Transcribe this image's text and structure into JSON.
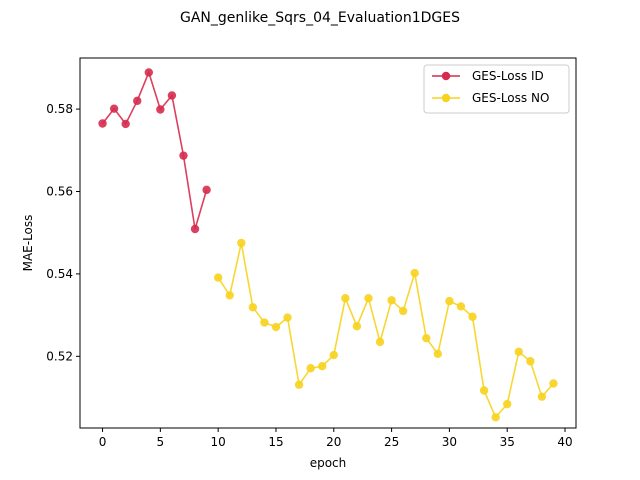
{
  "chart_data": {
    "type": "line",
    "title": "GAN_genlike_Sqrs_04_Evaluation1DGES",
    "xlabel": "epoch",
    "ylabel": "MAE-Loss",
    "xlim": [
      -1.95,
      40.95
    ],
    "ylim": [
      0.5026,
      0.5924
    ],
    "xticks": [
      0,
      5,
      10,
      15,
      20,
      25,
      30,
      35,
      40
    ],
    "yticks": [
      0.52,
      0.54,
      0.56,
      0.58
    ],
    "ytick_labels": [
      "0.52",
      "0.54",
      "0.56",
      "0.58"
    ],
    "grid": false,
    "legend_position": "top-right",
    "series": [
      {
        "name": "GES-Loss ID",
        "color": "#d62b4e",
        "x": [
          0,
          1,
          2,
          3,
          4,
          5,
          6,
          7,
          8,
          9
        ],
        "values": [
          0.5765,
          0.5801,
          0.5764,
          0.582,
          0.5889,
          0.5799,
          0.5833,
          0.5687,
          0.5509,
          0.5604
        ]
      },
      {
        "name": "GES-Loss NO",
        "color": "#f7d31e",
        "x": [
          10,
          11,
          12,
          13,
          14,
          15,
          16,
          17,
          18,
          19,
          20,
          21,
          22,
          23,
          24,
          25,
          26,
          27,
          28,
          29,
          30,
          31,
          32,
          33,
          34,
          35,
          36,
          37,
          38,
          39
        ],
        "values": [
          0.5391,
          0.5348,
          0.5475,
          0.5319,
          0.5282,
          0.5271,
          0.5294,
          0.5131,
          0.5171,
          0.5176,
          0.5203,
          0.5341,
          0.5273,
          0.5341,
          0.5235,
          0.5336,
          0.531,
          0.5402,
          0.5244,
          0.5206,
          0.5334,
          0.5321,
          0.5296,
          0.5117,
          0.5052,
          0.5084,
          0.5211,
          0.5188,
          0.5102,
          0.5134
        ]
      }
    ]
  }
}
